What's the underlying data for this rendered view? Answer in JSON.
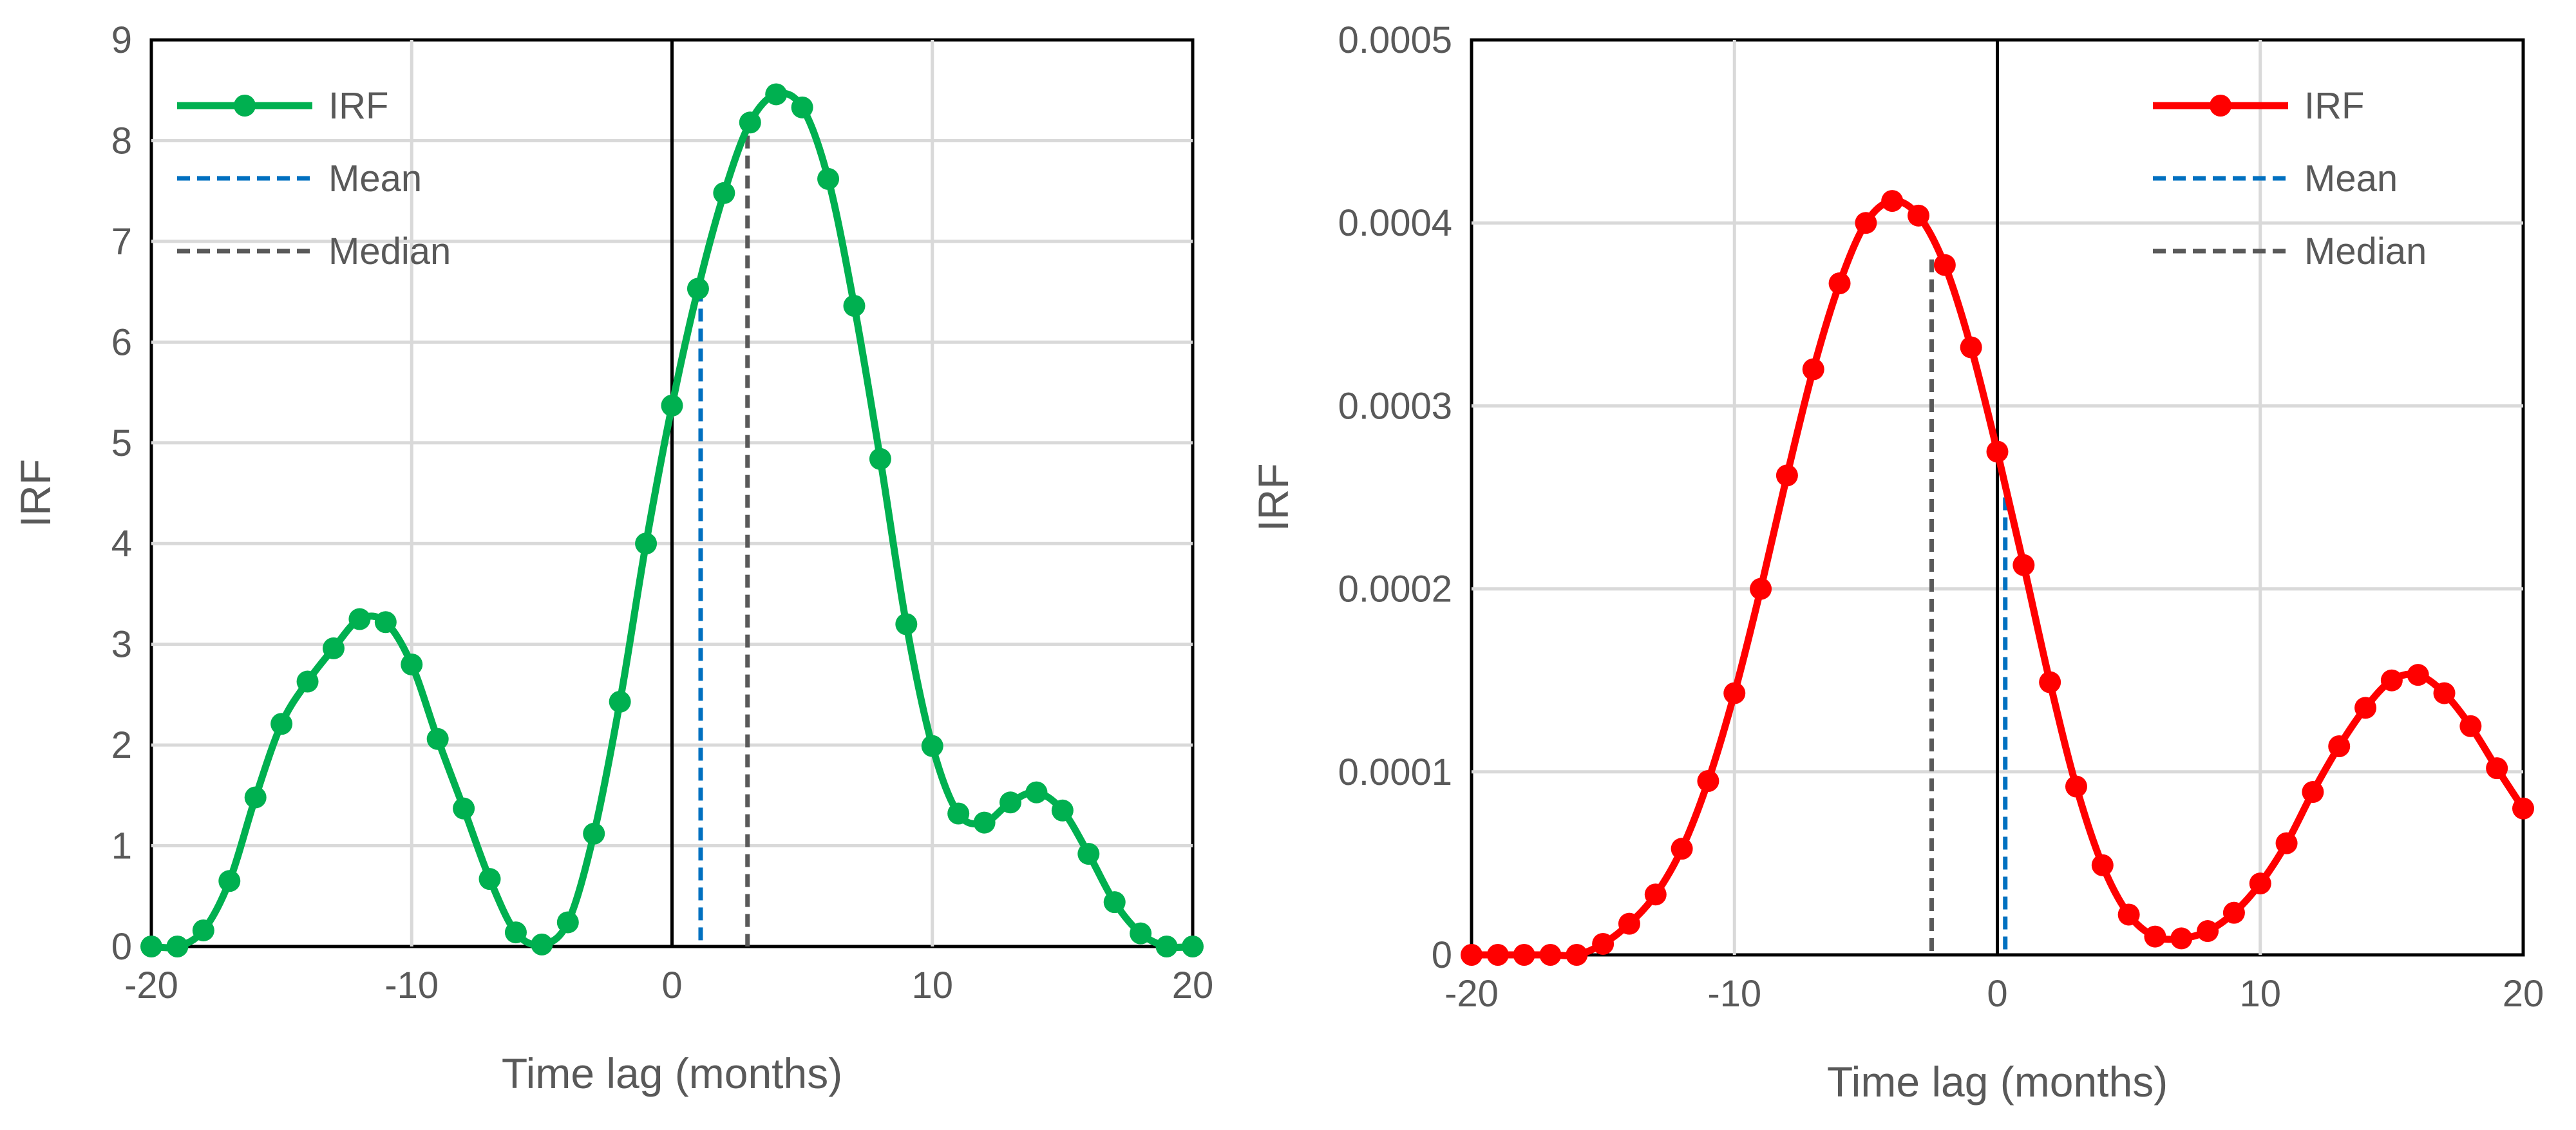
{
  "chart_data": [
    {
      "type": "line",
      "title": "",
      "xlabel": "Time lag (months)",
      "ylabel": "IRF",
      "xlim": [
        -20,
        20
      ],
      "ylim": [
        0,
        9
      ],
      "xticks": [
        "-20",
        "-10",
        "0",
        "10",
        "20"
      ],
      "yticks": [
        "0",
        "1",
        "2",
        "3",
        "4",
        "5",
        "6",
        "7",
        "8",
        "9"
      ],
      "grid": true,
      "legend_position": "top-left",
      "legend": {
        "irf": "IRF",
        "mean": "Mean",
        "median": "Median"
      },
      "colors": {
        "irf": "#00B050",
        "mean": "#0070C0",
        "median": "#595959",
        "zero_line": "#000000",
        "grid": "#D9D9D9"
      },
      "series": [
        {
          "name": "IRF",
          "x": [
            -20,
            -19,
            -18,
            -17,
            -16,
            -15,
            -14,
            -13,
            -12,
            -11,
            -10,
            -9,
            -8,
            -7,
            -6,
            -5,
            -4,
            -3,
            -2,
            -1,
            0,
            1,
            2,
            3,
            4,
            5,
            6,
            7,
            8,
            9,
            10,
            11,
            12,
            13,
            14,
            15,
            16,
            17,
            18,
            19,
            20
          ],
          "y": [
            0,
            0,
            0.16,
            0.65,
            1.48,
            2.21,
            2.63,
            2.96,
            3.25,
            3.22,
            2.8,
            2.06,
            1.37,
            0.67,
            0.14,
            0.02,
            0.24,
            1.12,
            2.43,
            4.0,
            5.37,
            6.53,
            7.48,
            8.18,
            8.46,
            8.33,
            7.62,
            6.36,
            4.84,
            3.2,
            1.99,
            1.32,
            1.23,
            1.43,
            1.53,
            1.35,
            0.92,
            0.44,
            0.13,
            0,
            0
          ]
        }
      ],
      "mean": {
        "x": 1.1,
        "y": 6.53
      },
      "median": {
        "x": 2.9,
        "y": 8.05
      }
    },
    {
      "type": "line",
      "title": "",
      "xlabel": "Time lag (months)",
      "ylabel": "IRF",
      "xlim": [
        -20,
        20
      ],
      "ylim": [
        0,
        0.0005
      ],
      "xticks": [
        "-20",
        "-10",
        "0",
        "10",
        "20"
      ],
      "yticks": [
        "0",
        "0.0001",
        "0.0002",
        "0.0003",
        "0.0004",
        "0.0005"
      ],
      "grid": true,
      "legend_position": "top-right",
      "legend": {
        "irf": "IRF",
        "mean": "Mean",
        "median": "Median"
      },
      "colors": {
        "irf": "#FF0000",
        "mean": "#0070C0",
        "median": "#595959",
        "zero_line": "#000000",
        "grid": "#D9D9D9"
      },
      "series": [
        {
          "name": "IRF",
          "x": [
            -20,
            -19,
            -18,
            -17,
            -16,
            -15,
            -14,
            -13,
            -12,
            -11,
            -10,
            -9,
            -8,
            -7,
            -6,
            -5,
            -4,
            -3,
            -2,
            -1,
            0,
            1,
            2,
            3,
            4,
            5,
            6,
            7,
            8,
            9,
            10,
            11,
            12,
            13,
            14,
            15,
            16,
            17,
            18,
            19,
            20
          ],
          "y": [
            0,
            0,
            0,
            0,
            0,
            6e-06,
            1.7e-05,
            3.3e-05,
            5.8e-05,
            9.5e-05,
            0.000143,
            0.0002,
            0.000262,
            0.00032,
            0.000367,
            0.0004,
            0.000412,
            0.000404,
            0.000377,
            0.000332,
            0.000275,
            0.000213,
            0.000149,
            9.2e-05,
            4.9e-05,
            2.2e-05,
            1e-05,
            9e-06,
            1.3e-05,
            2.3e-05,
            3.9e-05,
            6.1e-05,
            8.9e-05,
            0.000114,
            0.000135,
            0.00015,
            0.000153,
            0.000143,
            0.000125,
            0.000102,
            8e-05
          ]
        }
      ],
      "mean": {
        "x": 0.3,
        "y": 0.00025
      },
      "median": {
        "x": -2.5,
        "y": 0.00038
      }
    }
  ]
}
